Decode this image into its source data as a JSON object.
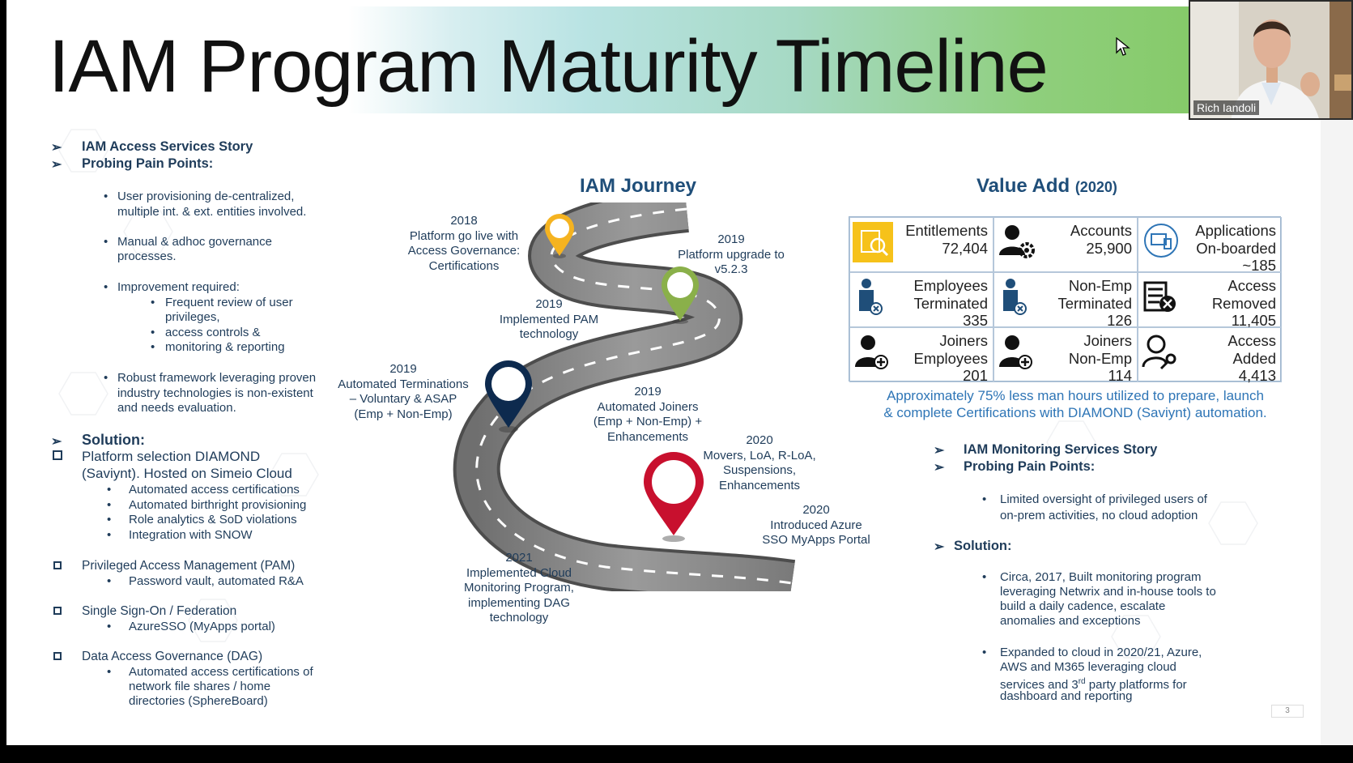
{
  "slide": {
    "title": "IAM Program Maturity Timeline",
    "page_number": "3"
  },
  "left": {
    "heading1": "IAM Access Services Story",
    "heading2": "Probing Pain Points:",
    "pain_points": [
      "User provisioning de-centralized,",
      "multiple int. & ext. entities involved.",
      "Manual & adhoc governance",
      "processes.",
      "Improvement required:",
      "Robust framework leveraging proven",
      "industry technologies is non-existent",
      "and needs evaluation."
    ],
    "improvement_items": [
      "Frequent review of user",
      "privileges,",
      "access controls &",
      "monitoring & reporting"
    ],
    "solution_heading": "Solution:",
    "diamond_line1": "Platform selection DIAMOND",
    "diamond_line2": "(Saviynt). Hosted on Simeio Cloud",
    "diamond_items": [
      "Automated access certifications",
      "Automated birthright provisioning",
      "Role analytics & SoD violations",
      "Integration with SNOW"
    ],
    "pam_heading": "Privileged Access Management (PAM)",
    "pam_item": "Password vault, automated R&A",
    "sso_heading": "Single Sign-On / Federation",
    "sso_item": "AzureSSO (MyApps portal)",
    "dag_heading": "Data Access Governance (DAG)",
    "dag_items": [
      "Automated access certifications of",
      "network file shares / home",
      "directories (SphereBoard)"
    ]
  },
  "journey": {
    "title": "IAM Journey",
    "milestones": [
      {
        "year": "2018",
        "lines": [
          "Platform go live with",
          "Access Governance:",
          "Certifications"
        ]
      },
      {
        "year": "2019",
        "lines": [
          "Platform upgrade to",
          "v5.2.3"
        ]
      },
      {
        "year": "2019",
        "lines": [
          "Implemented PAM",
          "technology"
        ]
      },
      {
        "year": "2019",
        "lines": [
          "Automated Terminations",
          "– Voluntary & ASAP",
          "(Emp + Non-Emp)"
        ]
      },
      {
        "year": "2019",
        "lines": [
          "Automated Joiners",
          "(Emp + Non-Emp) +",
          "Enhancements"
        ]
      },
      {
        "year": "2020",
        "lines": [
          "Movers, LoA, R-LoA,",
          "Suspensions,",
          "Enhancements"
        ]
      },
      {
        "year": "2020",
        "lines": [
          "Introduced Azure",
          "SSO MyApps Portal"
        ]
      },
      {
        "year": "2021",
        "lines": [
          "Implemented Cloud",
          "Monitoring Program,",
          "implementing DAG",
          "technology"
        ]
      }
    ],
    "pin_colors": [
      "#f5b320",
      "#8ab04a",
      "#0d2a4e",
      "#c8102e"
    ]
  },
  "value": {
    "title": "Value Add",
    "year": "(2020)",
    "cells": [
      {
        "icon": "entitlements-icon",
        "lines": [
          "Entitlements",
          "72,404"
        ]
      },
      {
        "icon": "accounts-gear-icon",
        "lines": [
          "Accounts",
          "25,900"
        ]
      },
      {
        "icon": "applications-icon",
        "lines": [
          "Applications",
          "On-boarded",
          "~185"
        ]
      },
      {
        "icon": "employee-terminated-icon",
        "lines": [
          "Employees",
          "Terminated",
          "335"
        ]
      },
      {
        "icon": "nonemp-terminated-icon",
        "lines": [
          "Non-Emp",
          "Terminated",
          "126"
        ]
      },
      {
        "icon": "access-removed-icon",
        "lines": [
          "Access",
          "Removed",
          "11,405"
        ]
      },
      {
        "icon": "joiner-employee-icon",
        "lines": [
          "Joiners",
          "Employees",
          "201"
        ]
      },
      {
        "icon": "joiner-nonemp-icon",
        "lines": [
          "Joiners",
          "Non-Emp",
          "114"
        ]
      },
      {
        "icon": "access-added-icon",
        "lines": [
          "Access",
          "Added",
          "4,413"
        ]
      }
    ],
    "note_line1": "Approximately 75% less man hours utilized to prepare, launch",
    "note_line2": "& complete Certifications with DIAMOND (Saviynt) automation."
  },
  "right": {
    "heading1": "IAM Monitoring Services Story",
    "heading2": "Probing Pain Points:",
    "pain_lines": [
      "Limited oversight of privileged users of",
      "on-prem activities, no cloud adoption"
    ],
    "solution_heading": "Solution:",
    "sol1": [
      "Circa, 2017, Built monitoring program",
      "leveraging Netwrix and in-house tools to",
      "build a daily cadence, escalate",
      "anomalies and exceptions"
    ],
    "sol2_line1": "Expanded to cloud in 2020/21, Azure,",
    "sol2_line2": "AWS and M365 leveraging cloud",
    "sol2_line3a": "services and 3",
    "sol2_line3sup": "rd",
    "sol2_line3b": " party platforms for",
    "sol2_line4": "dashboard and reporting"
  },
  "video": {
    "participant_name": "Rich Iandoli"
  }
}
